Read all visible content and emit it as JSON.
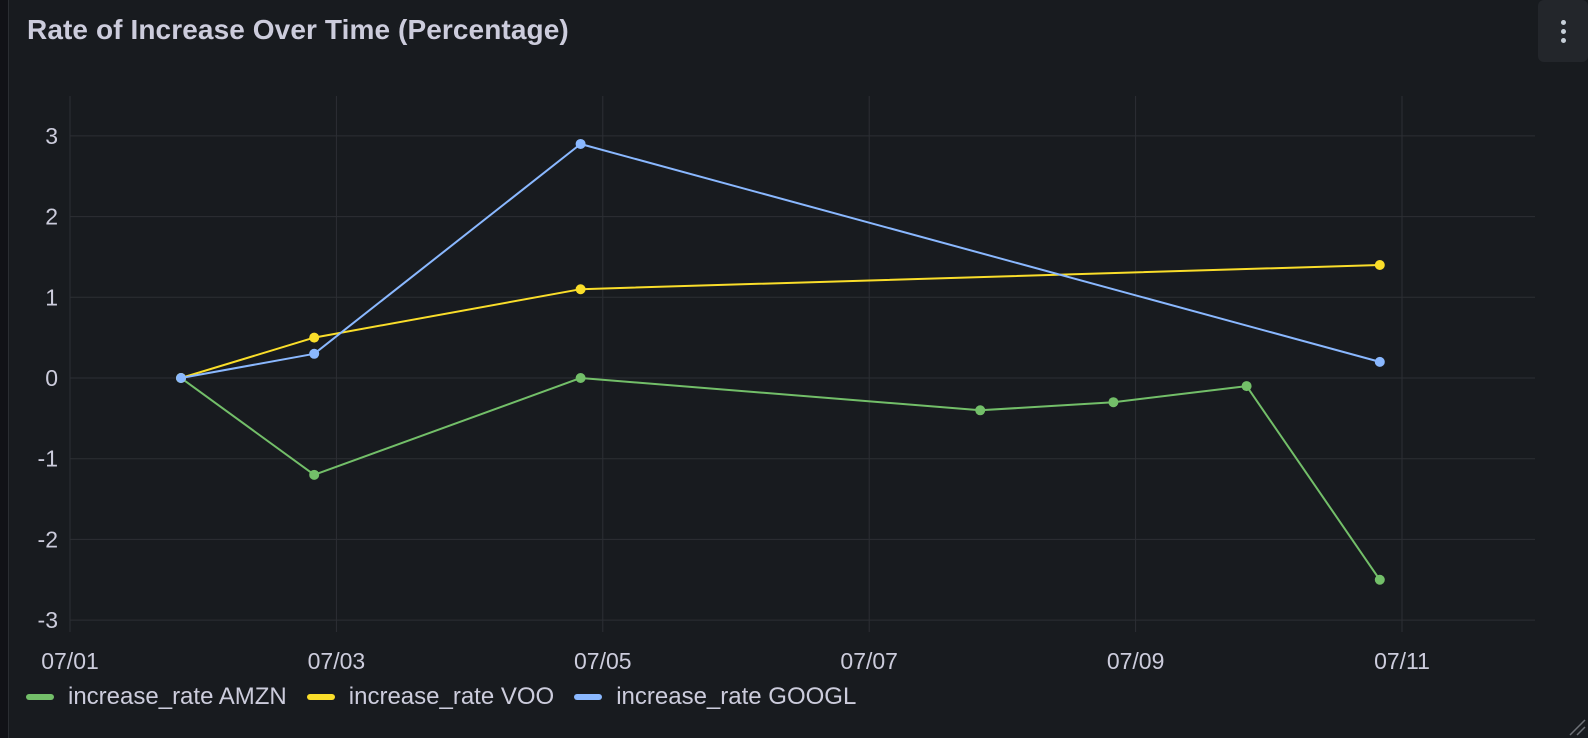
{
  "panel": {
    "title": "Rate of Increase Over Time (Percentage)"
  },
  "chart_data": {
    "type": "line",
    "title": "Rate of Increase Over Time (Percentage)",
    "xlabel": "",
    "ylabel": "",
    "x_ticks": [
      "07/01",
      "07/03",
      "07/05",
      "07/07",
      "07/09",
      "07/11"
    ],
    "y_ticks": [
      3,
      2,
      1,
      0,
      -1,
      -2,
      -3
    ],
    "xlim": [
      "07/01",
      "07/12"
    ],
    "ylim": [
      -3.2,
      3.5
    ],
    "grid": true,
    "legend_position": "bottom-left",
    "series": [
      {
        "name": "increase_rate AMZN",
        "color": "#73bf69",
        "points": [
          {
            "x": "07/01 20:00",
            "y": 0
          },
          {
            "x": "07/02 20:00",
            "y": -1.2
          },
          {
            "x": "07/04 20:00",
            "y": 0
          },
          {
            "x": "07/07 20:00",
            "y": -0.4
          },
          {
            "x": "07/08 20:00",
            "y": -0.3
          },
          {
            "x": "07/09 20:00",
            "y": -0.1
          },
          {
            "x": "07/10 20:00",
            "y": -2.5
          }
        ]
      },
      {
        "name": "increase_rate VOO",
        "color": "#fade2a",
        "points": [
          {
            "x": "07/01 20:00",
            "y": 0
          },
          {
            "x": "07/02 20:00",
            "y": 0.5
          },
          {
            "x": "07/04 20:00",
            "y": 1.1
          },
          {
            "x": "07/10 20:00",
            "y": 1.4
          }
        ]
      },
      {
        "name": "increase_rate GOOGL",
        "color": "#8ab8ff",
        "points": [
          {
            "x": "07/01 20:00",
            "y": 0
          },
          {
            "x": "07/02 20:00",
            "y": 0.3
          },
          {
            "x": "07/04 20:00",
            "y": 2.9
          },
          {
            "x": "07/10 20:00",
            "y": 0.2
          }
        ]
      }
    ]
  }
}
